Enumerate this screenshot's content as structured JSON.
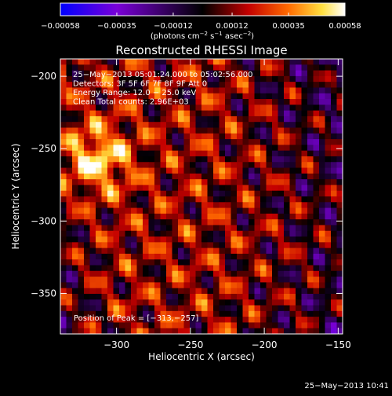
{
  "chart_data": {
    "type": "heatmap",
    "title": "Reconstructed RHESSI Image",
    "xlabel": "Heliocentric X (arcsec)",
    "ylabel": "Heliocentric Y (arcsec)",
    "xlim": [
      -338,
      -147
    ],
    "ylim": [
      -378,
      -188
    ],
    "x_ticks": [
      -300,
      -250,
      -200,
      -150
    ],
    "x_tick_labels": [
      "−300",
      "−250",
      "−200",
      "−150"
    ],
    "y_ticks": [
      -200,
      -250,
      -300,
      -350
    ],
    "y_tick_labels": [
      "−200",
      "−250",
      "−300",
      "−350"
    ],
    "colorbar": {
      "range": [
        -0.00058,
        0.00058
      ],
      "ticks": [
        -0.00058,
        -0.00035,
        -0.00012,
        0.00012,
        0.00035,
        0.00058
      ],
      "tick_labels": [
        "−0.00058",
        "−0.00035",
        "−0.00012",
        "0.00012",
        "0.00035",
        "0.00058"
      ],
      "units_prefix": "(photons cm",
      "units_sup1": "−2",
      "units_mid1": " s",
      "units_sup2": "−1",
      "units_mid2": " asec",
      "units_sup3": "−2",
      "units_suffix": ")",
      "colormap": [
        "#0000ff",
        "#7a00d8",
        "#000000",
        "#c40000",
        "#ff6a00",
        "#ffe040",
        "#ffffff"
      ]
    },
    "annotations": [
      "25−May−2013 05:01:24.000 to 05:02:56.000",
      "Detectors: 3F 5F 6F 7F 8F 9F  Att 0",
      "Energy Range: 12.0 − 25.0 keV",
      "Clean     Total counts: 2.96E+03"
    ],
    "peak_label": "Position of Peak = [−313,−257]",
    "peak": [
      -313,
      -257
    ]
  },
  "footer": {
    "timestamp": "25−May−2013 10:41"
  }
}
